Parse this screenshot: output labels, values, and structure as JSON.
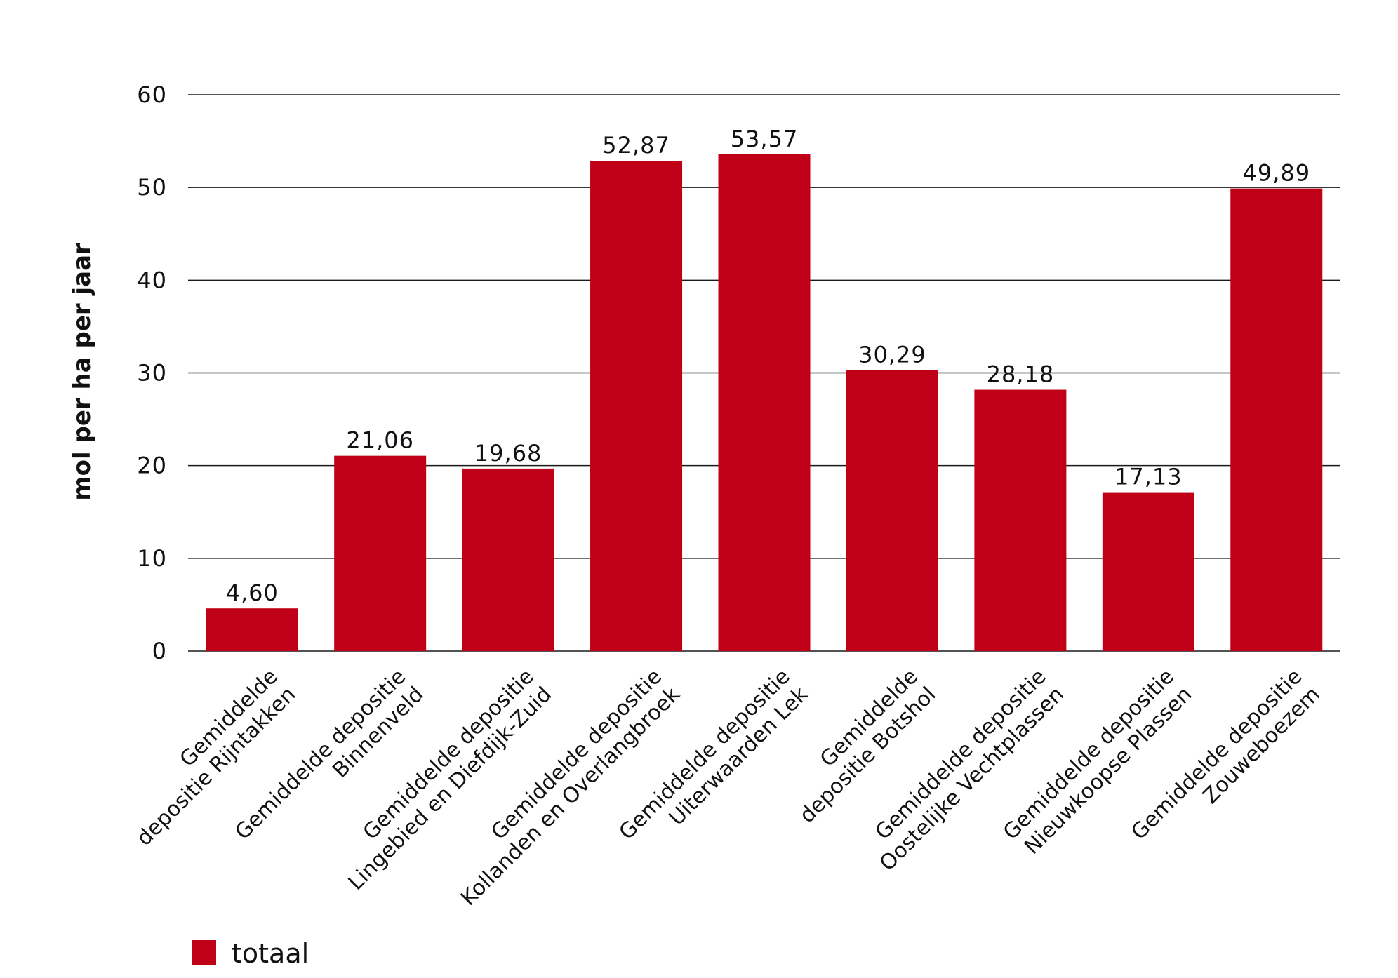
{
  "chart_data": {
    "type": "bar",
    "categories": [
      [
        "Gemiddelde",
        "depositie Rijntakken"
      ],
      [
        "Gemiddelde depositie",
        "Binnenveld"
      ],
      [
        "Gemiddelde depositie",
        "Lingebied en Diefdijk-Zuid"
      ],
      [
        "Gemiddelde depositie",
        "Kollanden en Overlangbroek"
      ],
      [
        "Gemiddelde depositie",
        "Uiterwaarden Lek"
      ],
      [
        "Gemiddelde",
        "depositie Botshol"
      ],
      [
        "Gemiddelde depositie",
        "Oostelijke Vechtplassen"
      ],
      [
        "Gemiddelde depositie",
        "Nieuwkoopse Plassen"
      ],
      [
        "Gemiddelde depositie",
        "Zouweboezem"
      ]
    ],
    "series": [
      {
        "name": "totaal",
        "color": "#c00016",
        "values": [
          4.6,
          21.06,
          19.68,
          52.87,
          53.57,
          30.29,
          28.18,
          17.13,
          49.89
        ],
        "value_labels": [
          "4,60",
          "21,06",
          "19,68",
          "52,87",
          "53,57",
          "30,29",
          "28,18",
          "17,13",
          "49,89"
        ]
      }
    ],
    "ylabel": "mol per ha per jaar",
    "ylim": [
      0,
      60
    ],
    "yticks": [
      0,
      10,
      20,
      30,
      40,
      50,
      60
    ],
    "grid": true,
    "legend_position": "bottom-left"
  }
}
